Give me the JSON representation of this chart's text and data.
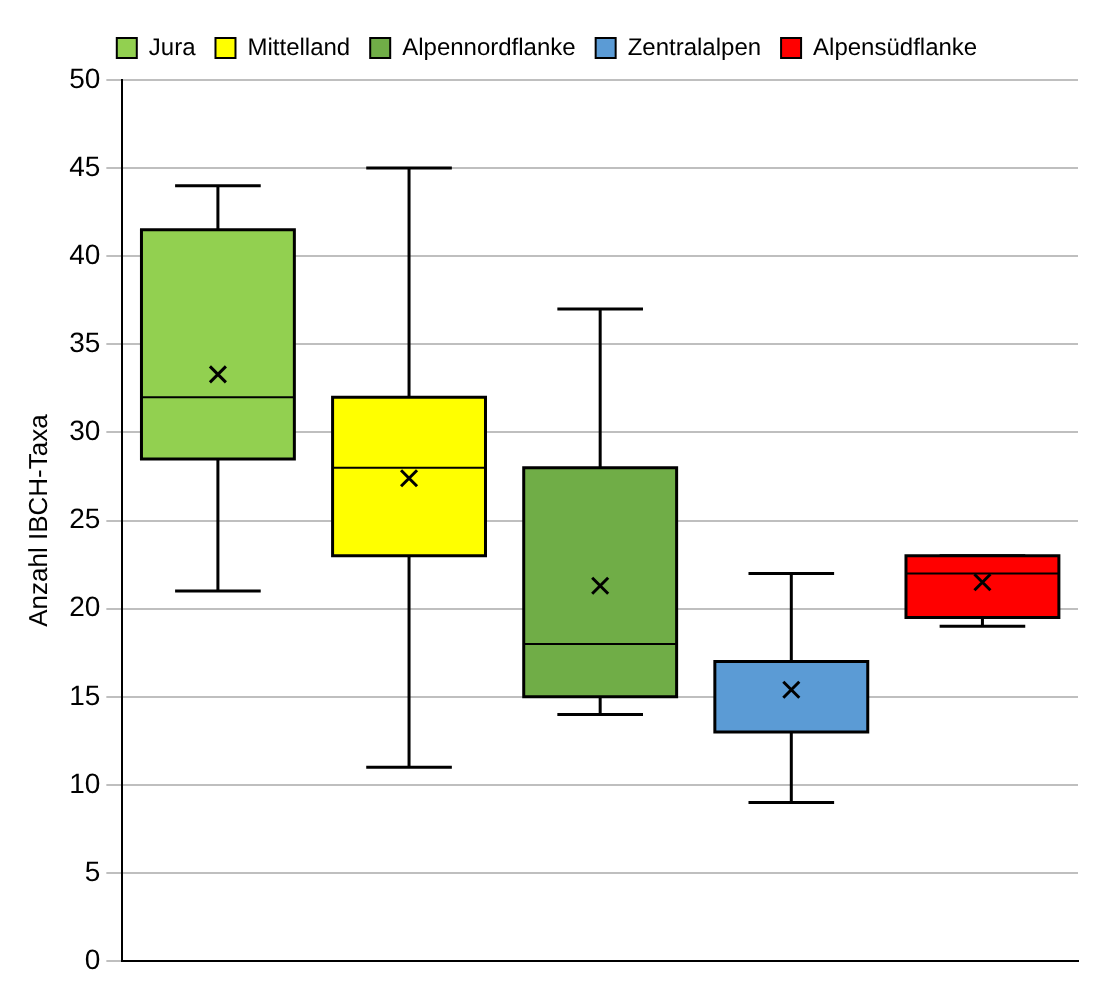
{
  "chart_data": {
    "type": "box",
    "ylabel": "Anzahl IBCH-Taxa",
    "categories": [
      null,
      null,
      null,
      null,
      null
    ],
    "ylim": [
      0,
      50
    ],
    "yticks": [
      0,
      5,
      10,
      15,
      20,
      25,
      30,
      35,
      40,
      45,
      50
    ],
    "grid": "y",
    "legend": "top",
    "series": [
      {
        "name": "Jura",
        "color": "#92d050",
        "boxes": [
          {
            "low": 21,
            "q1": 28.5,
            "median": 32,
            "q3": 41.5,
            "high": 44,
            "mean": 33.3
          },
          null,
          null,
          null,
          null
        ]
      },
      {
        "name": "Mittelland",
        "color": "#ffff00",
        "boxes": [
          null,
          {
            "low": 11,
            "q1": 23,
            "median": 28,
            "q3": 32,
            "high": 45,
            "mean": 27.4
          },
          null,
          null,
          null
        ]
      },
      {
        "name": "Alpennordflanke",
        "color": "#70ad47",
        "boxes": [
          null,
          null,
          {
            "low": 14,
            "q1": 15,
            "median": 18,
            "q3": 28,
            "high": 37,
            "mean": 21.3
          },
          null,
          null
        ]
      },
      {
        "name": "Zentralalpen",
        "color": "#5b9bd5",
        "boxes": [
          null,
          null,
          null,
          {
            "low": 9,
            "q1": 13,
            "median": 13,
            "q3": 17,
            "high": 22,
            "mean": 15.4
          },
          null
        ]
      },
      {
        "name": "Alpensüdflanke",
        "color": "#ff0000",
        "boxes": [
          null,
          null,
          null,
          null,
          {
            "low": 19,
            "q1": 19.5,
            "median": 22,
            "q3": 23,
            "high": 23,
            "mean": 21.5
          }
        ]
      }
    ]
  }
}
